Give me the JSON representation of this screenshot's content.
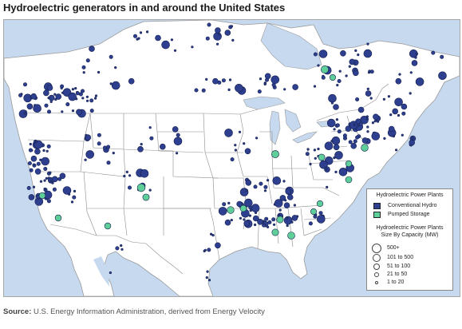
{
  "title": "Hydroelectric generators in and around the United States",
  "legend": {
    "title": "Hydroelectric Power Plants",
    "types": [
      {
        "label": "Conventional Hydro",
        "color": "#2e3f8f"
      },
      {
        "label": "Pumped Storage",
        "color": "#5fcf9a"
      }
    ],
    "size_title_line1": "Hydroelectric Power Plants",
    "size_title_line2": "Size By Capacity (MW)",
    "sizes": [
      {
        "label": "500+"
      },
      {
        "label": "101 to 500"
      },
      {
        "label": "51 to 100"
      },
      {
        "label": "21 to  50"
      },
      {
        "label": "1 to  20"
      }
    ]
  },
  "source": {
    "prefix": "Source:",
    "text": " U.S. Energy Information Administration, derived from Energy Velocity"
  },
  "colors": {
    "water": "#c6d9ef",
    "land": "#ffffff",
    "border": "#8c8c8c",
    "conventional": "#2e3f8f",
    "pumped": "#5fcf9a"
  }
}
